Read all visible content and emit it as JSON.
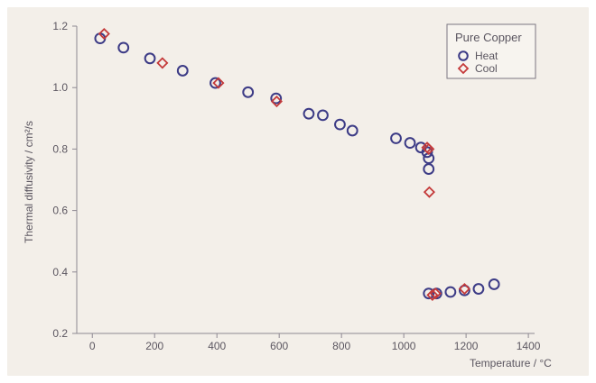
{
  "chart_data": {
    "type": "scatter",
    "xlabel": "Temperature / °C",
    "ylabel": "Thermal diffusivity / cm²/s",
    "xlim": [
      -50,
      1420
    ],
    "ylim": [
      0.2,
      1.2
    ],
    "x_ticks": [
      0,
      200,
      400,
      600,
      800,
      1000,
      1200,
      1400
    ],
    "y_ticks": [
      0.2,
      0.4,
      0.6,
      0.8,
      1.0,
      1.2
    ],
    "x_tick_labels": [
      "0",
      "200",
      "400",
      "600",
      "800",
      "1000",
      "1200",
      "1400"
    ],
    "y_tick_labels": [
      "0.2",
      "0.4",
      "0.6",
      "0.8",
      "1.0",
      "1.2"
    ],
    "legend": {
      "title": "Pure Copper",
      "position": "top-right"
    },
    "grid": false,
    "series": [
      {
        "name": "Heat",
        "marker": "circle",
        "color": "#3c3b86",
        "points": [
          [
            25,
            1.16
          ],
          [
            100,
            1.13
          ],
          [
            185,
            1.095
          ],
          [
            290,
            1.055
          ],
          [
            395,
            1.015
          ],
          [
            500,
            0.985
          ],
          [
            590,
            0.965
          ],
          [
            695,
            0.915
          ],
          [
            740,
            0.91
          ],
          [
            795,
            0.88
          ],
          [
            835,
            0.86
          ],
          [
            975,
            0.835
          ],
          [
            1020,
            0.82
          ],
          [
            1055,
            0.805
          ],
          [
            1075,
            0.79
          ],
          [
            1080,
            0.77
          ],
          [
            1080,
            0.735
          ],
          [
            1080,
            0.33
          ],
          [
            1105,
            0.33
          ],
          [
            1150,
            0.335
          ],
          [
            1195,
            0.34
          ],
          [
            1240,
            0.345
          ],
          [
            1290,
            0.36
          ]
        ]
      },
      {
        "name": "Cool",
        "marker": "diamond",
        "color": "#c43a3a",
        "points": [
          [
            38,
            1.175
          ],
          [
            225,
            1.08
          ],
          [
            405,
            1.015
          ],
          [
            592,
            0.955
          ],
          [
            1075,
            0.805
          ],
          [
            1080,
            0.8
          ],
          [
            1082,
            0.66
          ],
          [
            1092,
            0.325
          ],
          [
            1102,
            0.33
          ],
          [
            1195,
            0.345
          ]
        ]
      }
    ]
  }
}
